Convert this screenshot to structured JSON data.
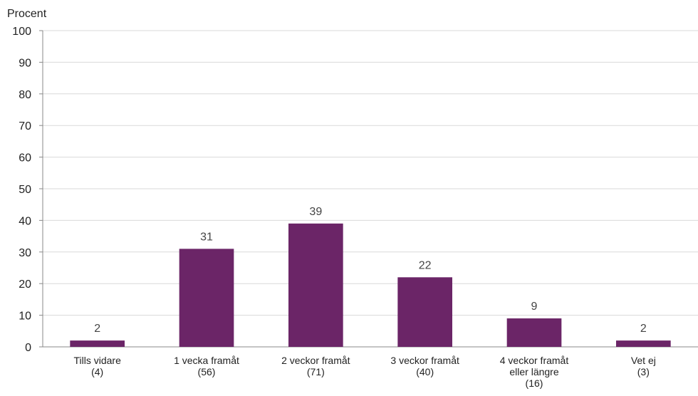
{
  "chart_data": {
    "type": "bar",
    "y_label": "Procent",
    "categories": [
      "Tills vidare\n(4)",
      "1 vecka framåt\n(56)",
      "2 veckor framåt\n(71)",
      "3 veckor framåt\n(40)",
      "4 veckor framåt\neller längre\n(16)",
      "Vet ej\n(3)"
    ],
    "values": [
      2,
      31,
      39,
      22,
      9,
      2
    ],
    "color": "#6b2567",
    "ylim": [
      0,
      100
    ],
    "yticks": [
      0,
      10,
      20,
      30,
      40,
      50,
      60,
      70,
      80,
      90,
      100
    ],
    "grid": true
  }
}
